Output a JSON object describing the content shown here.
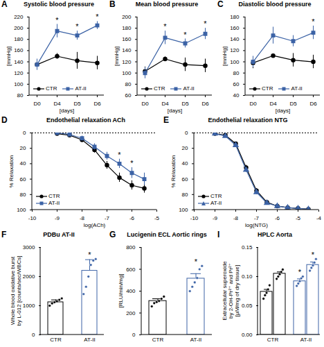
{
  "chart_data": [
    {
      "panel": "A",
      "type": "line",
      "title": "Systolic blood pressure",
      "x_label": "[days]",
      "y_label": "[mmHg]",
      "categories": [
        "D0",
        "D4",
        "D5",
        "D6"
      ],
      "ylim": [
        80,
        220
      ],
      "yticks": [
        80,
        100,
        120,
        140,
        160,
        180,
        200,
        220
      ],
      "legend": "bottom",
      "series": [
        {
          "name": "CTR",
          "color": "#000000",
          "marker": "circle",
          "values": [
            135,
            150,
            142,
            138
          ],
          "errors": [
            8,
            5,
            15,
            12
          ]
        },
        {
          "name": "AT-II",
          "color": "#3c63a6",
          "marker": "square",
          "values": [
            135,
            195,
            187,
            205
          ],
          "errors": [
            10,
            12,
            8,
            7
          ]
        }
      ],
      "annotations": [
        {
          "text": "*",
          "x": "D4"
        },
        {
          "text": "*",
          "x": "D5"
        },
        {
          "text": "*",
          "x": "D6"
        }
      ]
    },
    {
      "panel": "B",
      "type": "line",
      "title": "Mean blood pressure",
      "x_label": "[days]",
      "y_label": "[mmHg]",
      "categories": [
        "D0",
        "D4",
        "D5",
        "D6"
      ],
      "ylim": [
        60,
        200
      ],
      "yticks": [
        60,
        80,
        100,
        120,
        140,
        160,
        180,
        200
      ],
      "legend": "bottom",
      "series": [
        {
          "name": "CTR",
          "color": "#000000",
          "marker": "circle",
          "values": [
            103,
            125,
            115,
            113
          ],
          "errors": [
            8,
            4,
            12,
            12
          ]
        },
        {
          "name": "AT-II",
          "color": "#3c63a6",
          "marker": "square",
          "values": [
            100,
            163,
            153,
            170
          ],
          "errors": [
            10,
            12,
            8,
            10
          ]
        }
      ],
      "annotations": [
        {
          "text": "*",
          "x": "D4"
        },
        {
          "text": "*",
          "x": "D5"
        },
        {
          "text": "*",
          "x": "D6"
        }
      ]
    },
    {
      "panel": "C",
      "type": "line",
      "title": "Diastolic blood pressure",
      "x_label": "[days]",
      "y_label": "[mmHg]",
      "categories": [
        "D0",
        "D4",
        "D5",
        "D6"
      ],
      "ylim": [
        40,
        180
      ],
      "yticks": [
        40,
        60,
        80,
        100,
        120,
        140,
        160,
        180
      ],
      "legend": "bottom",
      "series": [
        {
          "name": "CTR",
          "color": "#000000",
          "marker": "circle",
          "values": [
            98,
            111,
            103,
            100
          ],
          "errors": [
            10,
            3,
            12,
            12
          ]
        },
        {
          "name": "AT-II",
          "color": "#3c63a6",
          "marker": "square",
          "values": [
            100,
            147,
            137,
            152
          ],
          "errors": [
            10,
            15,
            10,
            12
          ]
        }
      ],
      "annotations": [
        {
          "text": "*",
          "x": "D6"
        }
      ]
    },
    {
      "panel": "D",
      "type": "line",
      "title": "Endothelial relaxation ACh",
      "x_label": "log(ACh)",
      "y_label": "% Relaxation",
      "x": [
        -9,
        -8.5,
        -8,
        -7.5,
        -7,
        -6.5,
        -6,
        -5.5
      ],
      "xlim": [
        -10,
        -5
      ],
      "xticks": [
        -10,
        -9,
        -8,
        -7,
        -6,
        -5
      ],
      "ylim": [
        100,
        0
      ],
      "yticks": [
        0,
        20,
        40,
        60,
        80,
        100
      ],
      "legend": "bottom-left",
      "series": [
        {
          "name": "CTR",
          "color": "#000000",
          "marker": "circle",
          "values": [
            1,
            3,
            9,
            22,
            42,
            58,
            68,
            72
          ],
          "errors": [
            1,
            2,
            3,
            4,
            5,
            6,
            6,
            6
          ]
        },
        {
          "name": "AT-II",
          "color": "#3c63a6",
          "marker": "square",
          "values": [
            0,
            2,
            7,
            18,
            30,
            40,
            52,
            60
          ],
          "errors": [
            1,
            2,
            3,
            4,
            5,
            6,
            7,
            8
          ]
        }
      ],
      "annotations": [
        {
          "text": "*",
          "x": -6.5
        },
        {
          "text": "*",
          "x": -6
        }
      ]
    },
    {
      "panel": "E",
      "type": "line",
      "title": "Endothelial relaxation NTG",
      "x_label": "log(NTG)",
      "y_label": "% Relaxation",
      "x": [
        -9,
        -8.5,
        -8,
        -7.5,
        -7,
        -6.5,
        -6,
        -5.5,
        -5,
        -4.5
      ],
      "xlim": [
        -10,
        -4
      ],
      "xticks": [
        -10,
        -9,
        -8,
        -7,
        -6,
        -5,
        -4
      ],
      "ylim": [
        100,
        0
      ],
      "yticks": [
        0,
        20,
        40,
        60,
        80,
        100
      ],
      "legend": "bottom-left",
      "series": [
        {
          "name": "CTR",
          "color": "#000000",
          "marker": "circle",
          "values": [
            1,
            3,
            14,
            45,
            75,
            90,
            95,
            97,
            98,
            99
          ],
          "errors": [
            1,
            1,
            2,
            3,
            3,
            2,
            2,
            1,
            1,
            1
          ]
        },
        {
          "name": "AT-II",
          "color": "#3c63a6",
          "marker": "triangle",
          "values": [
            1,
            4,
            16,
            48,
            77,
            91,
            95,
            97,
            98,
            99
          ],
          "errors": [
            1,
            1,
            2,
            3,
            3,
            2,
            2,
            1,
            1,
            1
          ]
        }
      ]
    },
    {
      "panel": "F",
      "type": "bar",
      "title": "PDBu AT-II",
      "y_label": "Whole blood oxidative burst\nby L-012 [counts/sec/WBCs]",
      "categories": [
        "CTR",
        "AT-II"
      ],
      "values": [
        1120,
        2200
      ],
      "errors": [
        80,
        380
      ],
      "points": [
        [
          1000,
          1080,
          1120,
          1150,
          1200,
          1250
        ],
        [
          1400,
          1650,
          2000,
          2400,
          2550,
          2600
        ]
      ],
      "colors": [
        "#000000",
        "#3c63a6"
      ],
      "ylim": [
        0,
        3000
      ],
      "yticks": [
        0,
        1000,
        2000,
        3000
      ],
      "annotations": [
        {
          "text": "*",
          "x": "AT-II"
        }
      ]
    },
    {
      "panel": "G",
      "type": "bar",
      "title": "Lucigenin ECL Aortic rings",
      "y_label": "[RLU/min/mg]",
      "categories": [
        "CTR",
        "AT-II"
      ],
      "values": [
        310,
        515
      ],
      "errors": [
        20,
        45
      ],
      "points": [
        [
          260,
          290,
          300,
          310,
          330,
          350
        ],
        [
          400,
          440,
          480,
          520,
          600,
          630
        ]
      ],
      "colors": [
        "#000000",
        "#3c63a6"
      ],
      "ylim": [
        0,
        800
      ],
      "yticks": [
        0,
        200,
        400,
        600,
        800
      ],
      "annotations": [
        {
          "text": "*",
          "x": "AT-II"
        }
      ]
    },
    {
      "panel": "I",
      "type": "bar",
      "title": "HPLC Aorta",
      "y_label": "Extracellular superoxide\nby 2-OH-Pr²⁺ and Pr²⁺\n[µM/mg of dry tissue]",
      "categories": [
        "CTR",
        "AT-II"
      ],
      "colors": [
        "#000000",
        "#3c63a6"
      ],
      "series": [
        {
          "values": [
            0.074,
            0.092
          ],
          "errors": [
            0.004,
            0.004
          ],
          "points": [
            [
              0.062,
              0.068,
              0.072,
              0.078,
              0.085
            ],
            [
              0.084,
              0.088,
              0.092,
              0.097,
              0.1
            ]
          ]
        },
        {
          "values": [
            0.105,
            0.12
          ],
          "errors": [
            0.003,
            0.005
          ],
          "points": [
            [
              0.096,
              0.1,
              0.104,
              0.108,
              0.112
            ],
            [
              0.11,
              0.115,
              0.119,
              0.124,
              0.13
            ]
          ]
        }
      ],
      "ylim": [
        0,
        0.15
      ],
      "yticks": [
        {
          "value": 0,
          "label": "0.00"
        },
        0.05,
        {
          "value": 0.1,
          "label": "0.10"
        },
        {
          "value": 0.15,
          "label": "0.15"
        }
      ],
      "annotations": [
        {
          "text": "*",
          "x": "AT-II",
          "series": 0
        },
        {
          "text": "*",
          "x": "AT-II",
          "series": 1
        }
      ]
    }
  ]
}
